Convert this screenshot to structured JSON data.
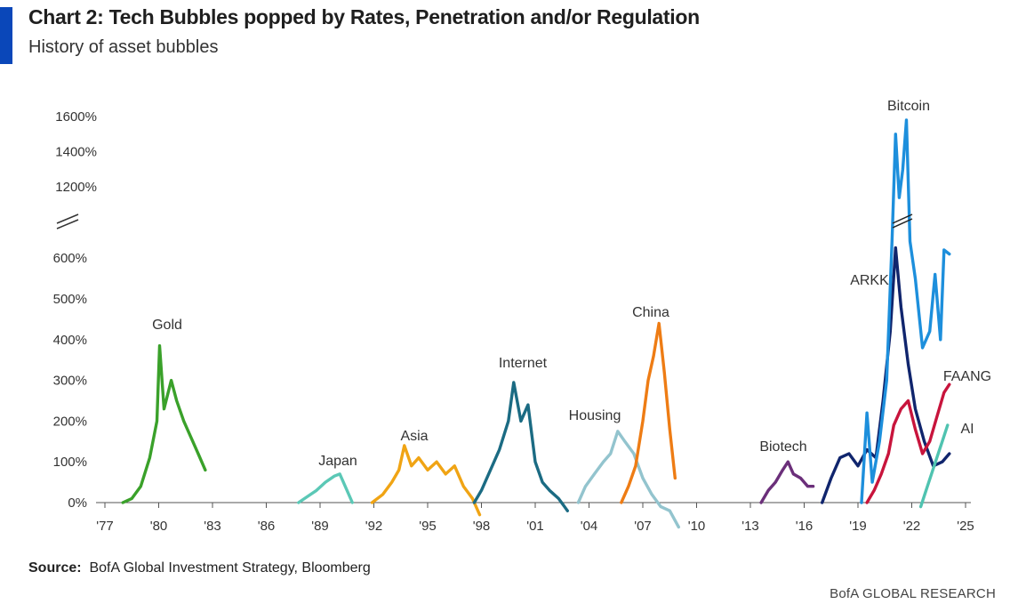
{
  "header": {
    "title": "Chart 2: Tech Bubbles popped by Rates, Penetration and/or Regulation",
    "subtitle": "History of asset bubbles"
  },
  "footer": {
    "source_label": "Source:",
    "source_text": "BofA Global Investment Strategy, Bloomberg",
    "brand": "BofA GLOBAL RESEARCH"
  },
  "chart_data": {
    "type": "line",
    "title": "Chart 2: Tech Bubbles popped by Rates, Penetration and/or Regulation",
    "subtitle": "History of asset bubbles",
    "xlabel": "",
    "ylabel": "",
    "x_ticks": [
      "'77",
      "'80",
      "'83",
      "'86",
      "'89",
      "'92",
      "'95",
      "'98",
      "'01",
      "'04",
      "'07",
      "'10",
      "'13",
      "'16",
      "'19",
      "'22",
      "'25"
    ],
    "xlim": [
      1977,
      2025
    ],
    "y_ticks_lower": [
      "0%",
      "100%",
      "200%",
      "300%",
      "400%",
      "500%",
      "600%"
    ],
    "y_ticks_upper": [
      "1200%",
      "1400%",
      "1600%"
    ],
    "ylim": [
      0,
      1600
    ],
    "y_axis_break": true,
    "grid": false,
    "series": [
      {
        "name": "Gold",
        "color": "#3aa12a",
        "x": [
          1978.0,
          1978.5,
          1979.0,
          1979.5,
          1979.9,
          1980.05,
          1980.3,
          1980.7,
          1981.0,
          1981.4,
          1981.8,
          1982.2,
          1982.6
        ],
        "y": [
          0,
          10,
          40,
          110,
          200,
          385,
          230,
          300,
          250,
          200,
          160,
          120,
          80
        ]
      },
      {
        "name": "Japan",
        "color": "#5bc8b6",
        "x": [
          1987.8,
          1988.3,
          1988.8,
          1989.3,
          1989.8,
          1990.1,
          1990.5,
          1990.8
        ],
        "y": [
          0,
          15,
          30,
          50,
          65,
          70,
          30,
          0
        ]
      },
      {
        "name": "Asia",
        "color": "#f0a414",
        "x": [
          1991.9,
          1992.5,
          1993.0,
          1993.4,
          1993.7,
          1994.1,
          1994.5,
          1995.0,
          1995.5,
          1996.0,
          1996.5,
          1997.0,
          1997.5,
          1997.9
        ],
        "y": [
          0,
          20,
          50,
          80,
          140,
          90,
          110,
          80,
          100,
          70,
          90,
          40,
          10,
          -30
        ]
      },
      {
        "name": "Internet",
        "color": "#1b6b83",
        "x": [
          1997.6,
          1998.0,
          1998.5,
          1999.0,
          1999.5,
          1999.8,
          2000.2,
          2000.6,
          2001.0,
          2001.4,
          2001.8,
          2002.3,
          2002.8
        ],
        "y": [
          0,
          30,
          80,
          130,
          200,
          295,
          200,
          240,
          100,
          50,
          30,
          10,
          -20
        ]
      },
      {
        "name": "Housing",
        "color": "#93c4ce",
        "x": [
          2003.4,
          2003.8,
          2004.3,
          2004.8,
          2005.2,
          2005.6,
          2006.0,
          2006.5,
          2007.0,
          2007.5,
          2008.0,
          2008.5,
          2009.0
        ],
        "y": [
          0,
          40,
          70,
          100,
          120,
          175,
          150,
          120,
          60,
          20,
          -10,
          -20,
          -60
        ]
      },
      {
        "name": "China",
        "color": "#ee7c14",
        "x": [
          2005.8,
          2006.2,
          2006.6,
          2007.0,
          2007.3,
          2007.6,
          2007.9,
          2008.2,
          2008.5,
          2008.8
        ],
        "y": [
          0,
          40,
          90,
          200,
          300,
          360,
          440,
          320,
          180,
          60
        ]
      },
      {
        "name": "Biotech",
        "color": "#6b2f7a",
        "x": [
          2013.6,
          2014.0,
          2014.4,
          2014.8,
          2015.1,
          2015.4,
          2015.8,
          2016.2,
          2016.5
        ],
        "y": [
          0,
          30,
          50,
          80,
          100,
          70,
          60,
          40,
          40
        ]
      },
      {
        "name": "ARKK",
        "color": "#10256d",
        "x": [
          2017.0,
          2017.5,
          2018.0,
          2018.5,
          2019.0,
          2019.5,
          2020.0,
          2020.4,
          2020.8,
          2021.1,
          2021.4,
          2021.8,
          2022.2,
          2022.7,
          2023.2,
          2023.7,
          2024.1
        ],
        "y": [
          0,
          60,
          110,
          120,
          90,
          130,
          110,
          250,
          420,
          640,
          480,
          340,
          230,
          150,
          90,
          100,
          120
        ]
      },
      {
        "name": "Bitcoin",
        "color": "#1d8fdc",
        "x": [
          2019.2,
          2019.5,
          2019.8,
          2020.2,
          2020.6,
          2020.9,
          2021.1,
          2021.3,
          2021.5,
          2021.7,
          2021.9,
          2022.2,
          2022.6,
          2023.0,
          2023.3,
          2023.6,
          2023.8,
          2024.1
        ],
        "y": [
          0,
          220,
          50,
          150,
          300,
          700,
          1500,
          1100,
          1300,
          1580,
          700,
          550,
          380,
          420,
          560,
          400,
          620,
          610
        ]
      },
      {
        "name": "FAANG",
        "color": "#c8143c",
        "x": [
          2019.5,
          2019.9,
          2020.3,
          2020.7,
          2021.0,
          2021.4,
          2021.8,
          2022.2,
          2022.6,
          2023.0,
          2023.4,
          2023.8,
          2024.1
        ],
        "y": [
          0,
          30,
          70,
          120,
          190,
          230,
          250,
          180,
          120,
          150,
          210,
          270,
          290
        ]
      },
      {
        "name": "AI",
        "color": "#4fc3b0",
        "x": [
          2022.5,
          2022.8,
          2023.1,
          2023.4,
          2023.7,
          2024.0
        ],
        "y": [
          -10,
          30,
          70,
          110,
          150,
          190
        ]
      }
    ]
  }
}
